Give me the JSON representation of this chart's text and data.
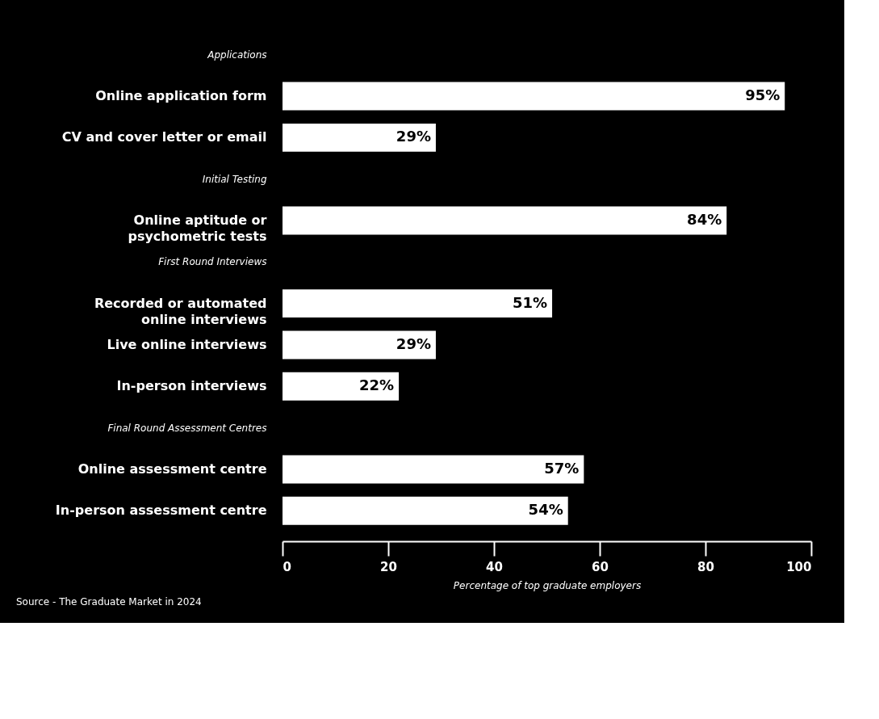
{
  "chart_data": {
    "type": "bar",
    "orientation": "horizontal",
    "categories": [
      "Applications",
      "Online application form",
      "CV and cover letter or email",
      "Initial Testing",
      "Online aptitude or psychometric tests",
      "First Round Interviews",
      "Recorded or automated online interviews",
      "Live online interviews",
      "In-person interviews",
      "Final Round Assessment Centres",
      "Online assessment centre",
      "In-person assessment centre"
    ],
    "values": [
      null,
      95,
      29,
      null,
      84,
      null,
      51,
      29,
      22,
      null,
      57,
      54
    ],
    "color": "#ffffff",
    "value_labels": [
      null,
      "95%",
      "29%",
      null,
      "84%",
      null,
      "51%",
      "29%",
      "22%",
      null,
      "57%",
      "54%"
    ],
    "xlim": [
      0,
      100
    ],
    "xticks": [
      0,
      20,
      40,
      60,
      80,
      100
    ],
    "grid": false,
    "xlabel": "Percentage of top graduate employers",
    "annotations": [
      "Source - The Graduate Market in 2024"
    ]
  }
}
